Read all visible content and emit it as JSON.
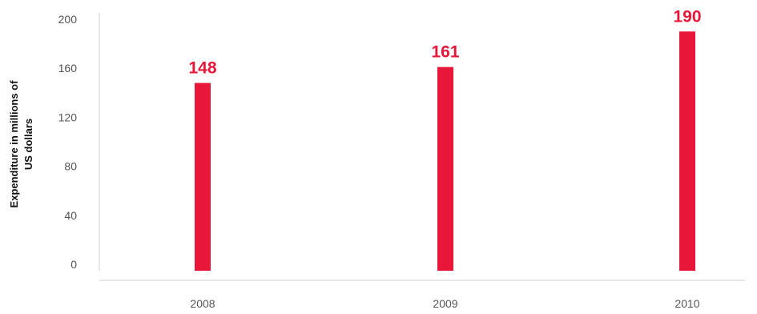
{
  "chart_data": {
    "type": "bar",
    "title": "",
    "xlabel": "",
    "ylabel": "Expenditure in millions of US dollars",
    "ylabel_lines": [
      "Expenditure in millions of",
      "US dollars"
    ],
    "categories": [
      "2008",
      "2009",
      "2010"
    ],
    "values": [
      148,
      161,
      190
    ],
    "data_labels": [
      "148",
      "161",
      "190"
    ],
    "ylim": [
      0,
      200
    ],
    "yticks": [
      0,
      40,
      80,
      120,
      160,
      200
    ],
    "ytick_labels": [
      "0",
      "40",
      "80",
      "120",
      "160",
      "200"
    ],
    "grid": false,
    "legend": "none"
  },
  "colors": {
    "bar": "#e8173a",
    "data_label": "#e8173a",
    "axis": "#cccccc",
    "tick_text": "#555555"
  }
}
